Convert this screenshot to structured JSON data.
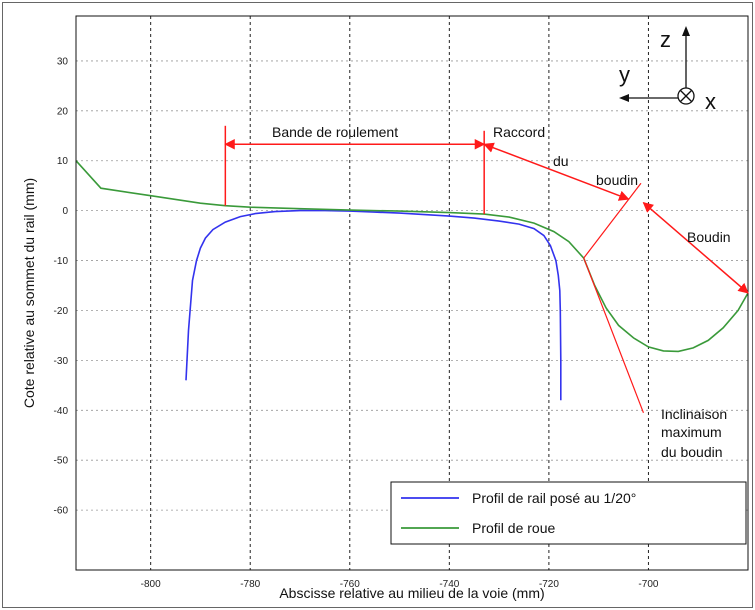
{
  "chart_data": {
    "type": "line",
    "xlabel": "Abscisse relative au milieu de la voie (mm)",
    "ylabel": "Cote relative au sommet du rail (mm)",
    "xlim": [
      -815,
      -680
    ],
    "ylim": [
      -72,
      39
    ],
    "x_ticks": [
      -800,
      -780,
      -760,
      -740,
      -720,
      -700
    ],
    "y_ticks": [
      30,
      20,
      10,
      0,
      -10,
      -20,
      -30,
      -40,
      -50,
      -60
    ],
    "grid": true,
    "legend_position": "bottom-right",
    "series": [
      {
        "name": "Profil de rail posé au 1/20°",
        "color": "#3333ee",
        "points": [
          [
            -792.9,
            -34
          ],
          [
            -792.4,
            -24
          ],
          [
            -791.6,
            -14
          ],
          [
            -790.8,
            -10
          ],
          [
            -790,
            -7.5
          ],
          [
            -789,
            -5.5
          ],
          [
            -787.5,
            -3.8
          ],
          [
            -785,
            -2.3
          ],
          [
            -782,
            -1.2
          ],
          [
            -779,
            -0.6
          ],
          [
            -775,
            -0.2
          ],
          [
            -770,
            0
          ],
          [
            -765,
            0
          ],
          [
            -760,
            -0.1
          ],
          [
            -755,
            -0.3
          ],
          [
            -750,
            -0.5
          ],
          [
            -745,
            -0.8
          ],
          [
            -740,
            -1.1
          ],
          [
            -735,
            -1.5
          ],
          [
            -730,
            -2.1
          ],
          [
            -726,
            -2.7
          ],
          [
            -723,
            -3.6
          ],
          [
            -721,
            -5
          ],
          [
            -719.7,
            -7
          ],
          [
            -718.6,
            -10
          ],
          [
            -718.1,
            -13
          ],
          [
            -717.8,
            -16
          ],
          [
            -717.7,
            -20
          ],
          [
            -717.6,
            -30
          ],
          [
            -717.6,
            -38
          ]
        ]
      },
      {
        "name": "Profil de roue",
        "color": "#3a9a3a",
        "points": [
          [
            -815,
            10
          ],
          [
            -810,
            4.5
          ],
          [
            -800,
            3
          ],
          [
            -790,
            1.5
          ],
          [
            -785,
            1
          ],
          [
            -780,
            0.7
          ],
          [
            -770,
            0.4
          ],
          [
            -760,
            0.1
          ],
          [
            -750,
            -0.1
          ],
          [
            -740,
            -0.4
          ],
          [
            -733,
            -0.7
          ],
          [
            -728,
            -1.3
          ],
          [
            -723,
            -2.5
          ],
          [
            -719,
            -4.2
          ],
          [
            -716,
            -6.2
          ],
          [
            -713,
            -9.5
          ],
          [
            -710.8,
            -15
          ],
          [
            -708.5,
            -19.5
          ],
          [
            -706,
            -23
          ],
          [
            -703,
            -25.5
          ],
          [
            -700,
            -27.3
          ],
          [
            -697,
            -28.1
          ],
          [
            -694,
            -28.2
          ],
          [
            -691,
            -27.5
          ],
          [
            -688,
            -26
          ],
          [
            -685,
            -23.5
          ],
          [
            -682,
            -20
          ],
          [
            -680,
            -16.5
          ]
        ]
      }
    ],
    "annotations": {
      "bande": "Bande de roulement",
      "raccord": "Raccord",
      "du": "du",
      "boudin": "boudin",
      "boudin_cap": "Boudin",
      "inclinaison": "Inclinaison",
      "maximum": "maximum",
      "du_boudin": "du boudin"
    },
    "axis_glyphs": {
      "z": "z",
      "y": "y",
      "x": "x"
    },
    "annotation_color": "#ff1a1a"
  }
}
